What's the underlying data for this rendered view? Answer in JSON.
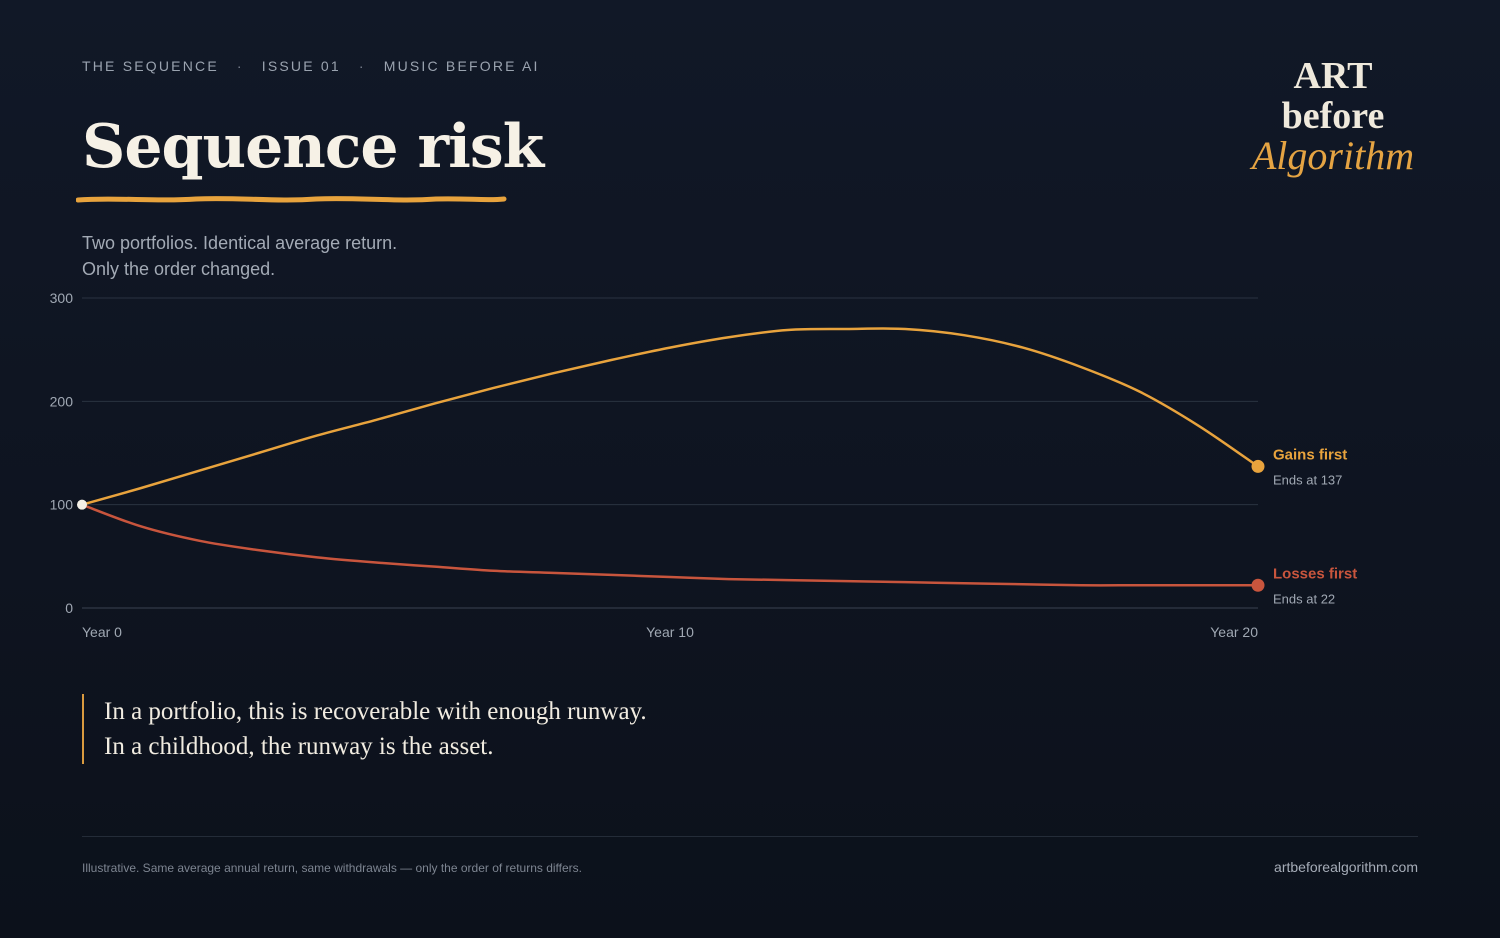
{
  "header": {
    "kicker": [
      "THE SEQUENCE",
      "ISSUE 01",
      "MUSIC BEFORE AI"
    ],
    "title": "Sequence risk",
    "subtitle_lines": [
      "Two portfolios. Identical average return.",
      "Only the order changed."
    ]
  },
  "logo": {
    "line1": "ART",
    "line2": "before",
    "line3": "Algorithm"
  },
  "colors": {
    "gains": "#e8a33d",
    "losses": "#c8553d",
    "grid": "#2a3340",
    "axis_text": "#a0a8b3",
    "start_point": "#f3efe6"
  },
  "chart_data": {
    "type": "line",
    "title": "",
    "xlabel": "",
    "ylabel": "",
    "x": [
      0,
      1,
      2,
      3,
      4,
      5,
      6,
      7,
      8,
      9,
      10,
      11,
      12,
      13,
      14,
      15,
      16,
      17,
      18,
      19,
      20
    ],
    "x_tick_labels": [
      {
        "x": 0,
        "label": "Year 0"
      },
      {
        "x": 10,
        "label": "Year 10"
      },
      {
        "x": 20,
        "label": "Year 20"
      }
    ],
    "xlim": [
      0,
      20
    ],
    "ylim": [
      0,
      300
    ],
    "yticks": [
      0,
      100,
      200,
      300
    ],
    "grid": true,
    "series": [
      {
        "name": "Gains first",
        "key": "gains",
        "end_label": "Ends at 137",
        "values": [
          100,
          116,
          133,
          150,
          167,
          182,
          198,
          213,
          227,
          240,
          252,
          262,
          269,
          270,
          270,
          264,
          252,
          233,
          209,
          176,
          137
        ]
      },
      {
        "name": "Losses first",
        "key": "losses",
        "end_label": "Ends at 22",
        "values": [
          100,
          79,
          65,
          56,
          49,
          44,
          40,
          36,
          34,
          32,
          30,
          28,
          27,
          26,
          25,
          24,
          23,
          22,
          22,
          22,
          22
        ]
      }
    ]
  },
  "quote_lines": [
    "In a portfolio, this is recoverable with enough runway.",
    "In a childhood, the runway is the asset."
  ],
  "footer": {
    "note": "Illustrative. Same average annual return, same withdrawals — only the order of returns differs.",
    "site": "artbeforealgorithm.com"
  }
}
